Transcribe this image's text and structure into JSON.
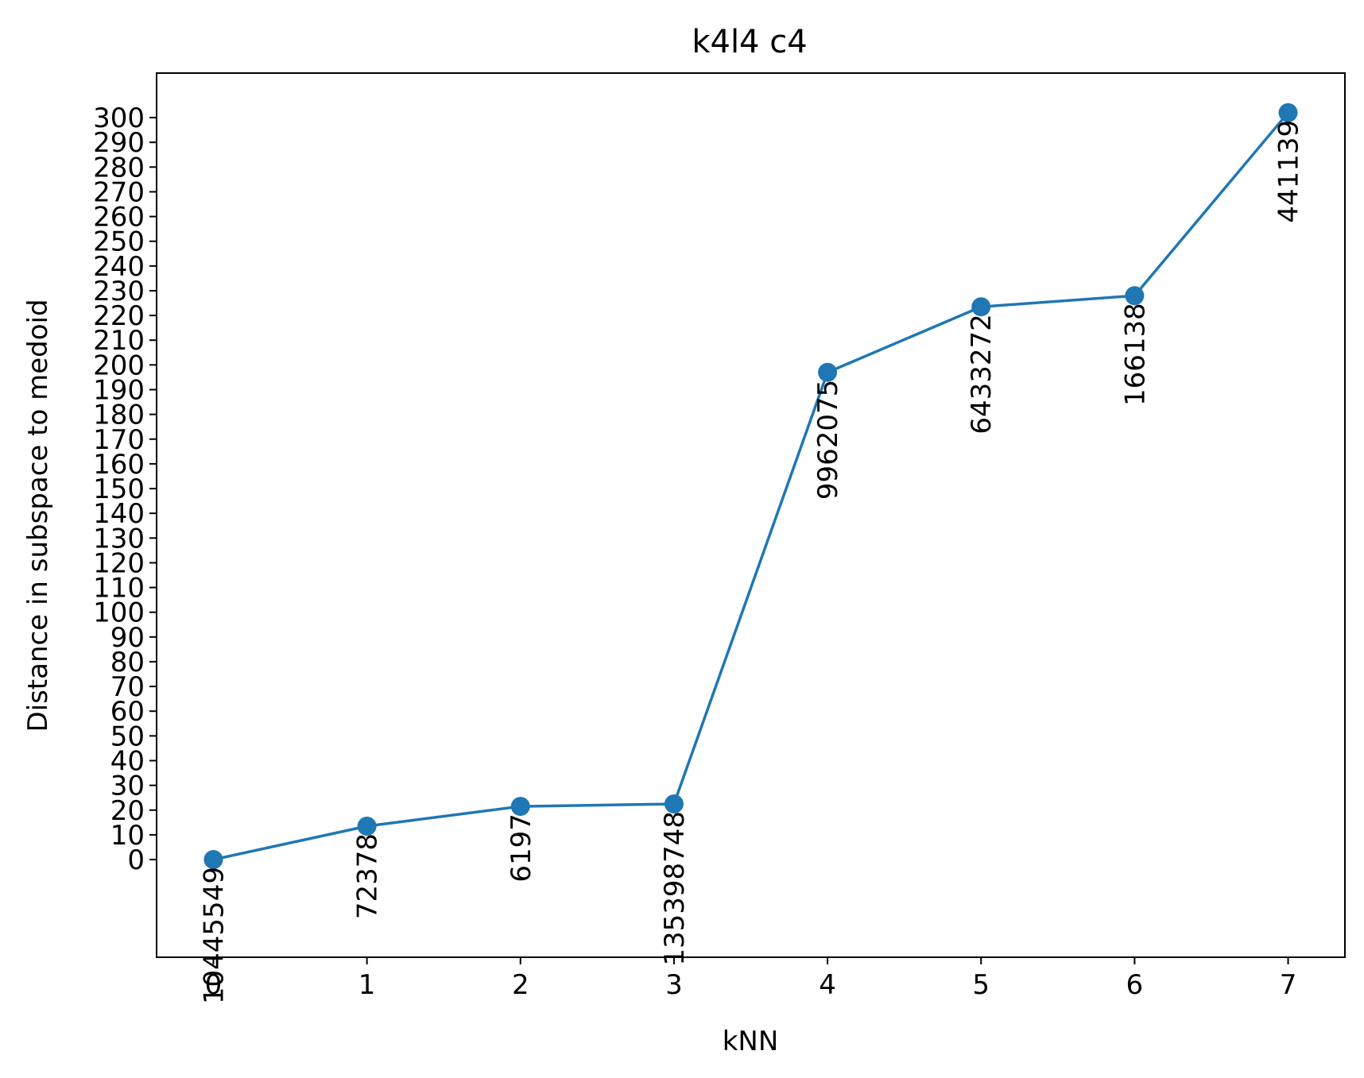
{
  "chart_data": {
    "type": "line",
    "title": "k4l4 c4",
    "xlabel": "kNN",
    "ylabel": "Distance in subspace to medoid",
    "x": [
      0,
      1,
      2,
      3,
      4,
      5,
      6,
      7
    ],
    "x_ticks": [
      "0",
      "1",
      "2",
      "3",
      "4",
      "5",
      "6",
      "7"
    ],
    "y_ticks": [
      "0",
      "10",
      "20",
      "30",
      "40",
      "50",
      "60",
      "70",
      "80",
      "90",
      "100",
      "110",
      "120",
      "130",
      "140",
      "150",
      "160",
      "170",
      "180",
      "190",
      "200",
      "210",
      "220",
      "230",
      "240",
      "250",
      "260",
      "270",
      "280",
      "290",
      "300"
    ],
    "xlim": [
      -0.37,
      7.37
    ],
    "ylim": [
      -39.5,
      318
    ],
    "series": [
      {
        "values": [
          0,
          13.5,
          21.5,
          22.5,
          197,
          223.5,
          228,
          302
        ],
        "point_labels": [
          "10445549",
          "72378",
          "6197",
          "135398748",
          "9962075",
          "6433272",
          "166138",
          "441139"
        ],
        "color": "#1f77b4",
        "marker": "circle"
      }
    ],
    "grid": false,
    "legend": "none"
  }
}
